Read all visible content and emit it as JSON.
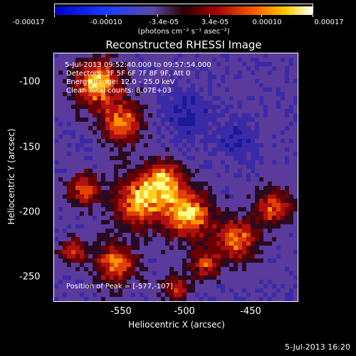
{
  "colorbar": {
    "ticks": [
      "-0.00017",
      "-0.00010",
      "-3.4e-05",
      "3.4e-05",
      "0.00010",
      "0.00017"
    ],
    "units": "(photons cm⁻² s⁻¹ asec⁻²)"
  },
  "plot": {
    "title": "Reconstructed RHESSI Image",
    "annotations": {
      "time": "5-Jul-2013 09:52:40.000 to 09:57:54.000",
      "detectors": "Detectors: 3F 5F 6F 7F 8F 9F, Att 0",
      "energy": "Energy Range: 12.0 - 25.0 keV",
      "counts": "Clean     Total counts: 8.07E+03",
      "peak": "Position of Peak = [-577,-107]"
    },
    "y_ticks": [
      "-100",
      "-150",
      "-200",
      "-250"
    ],
    "x_ticks": [
      "-550",
      "-500",
      "-450"
    ],
    "xlabel": "Heliocentric X (arcsec)",
    "ylabel": "Heliocentric Y (arcsec)"
  },
  "footer": {
    "date": "5-Jul-2013 16:20"
  },
  "colors": {
    "background": "#000000",
    "low": "#3c2aa6",
    "mid": "#b5151f",
    "high": "#ffff70"
  }
}
